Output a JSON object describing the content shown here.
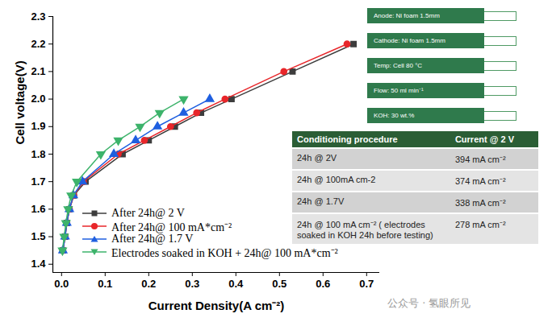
{
  "chart_data": {
    "type": "line",
    "x_label": "Current Density(A cm⁻²)",
    "y_label": "Cell voltage(V)",
    "xlim": [
      -0.02,
      0.73
    ],
    "ylim": [
      1.37,
      2.3
    ],
    "xticks": [
      {
        "value": 0,
        "label": "0.0"
      },
      0.1,
      0.2,
      0.3,
      0.4,
      0.5,
      0.6,
      0.7
    ],
    "yticks": [
      1.4,
      1.5,
      1.6,
      1.7,
      1.8,
      1.9,
      {
        "value": 2,
        "label": "2.0"
      },
      2.1,
      2.2,
      2.3
    ],
    "grid": false,
    "legend": "bottom left",
    "series": [
      {
        "name": "After 24h@ 2 V",
        "color": "#3d3d3d",
        "marker": "square",
        "x": [
          0.003,
          0.008,
          0.012,
          0.018,
          0.028,
          0.055,
          0.14,
          0.2,
          0.26,
          0.32,
          0.39,
          0.53,
          0.67
        ],
        "values": [
          1.45,
          1.5,
          1.55,
          1.6,
          1.65,
          1.7,
          1.8,
          1.85,
          1.9,
          1.95,
          2.0,
          2.1,
          2.2
        ]
      },
      {
        "name": "After 24h@ 100 mA*cm⁻²",
        "color": "#e8262a",
        "marker": "circle",
        "x": [
          0.003,
          0.008,
          0.012,
          0.018,
          0.028,
          0.05,
          0.13,
          0.19,
          0.25,
          0.31,
          0.375,
          0.51,
          0.655
        ],
        "values": [
          1.45,
          1.5,
          1.55,
          1.6,
          1.65,
          1.7,
          1.8,
          1.85,
          1.9,
          1.95,
          2.0,
          2.1,
          2.2
        ]
      },
      {
        "name": "After 24h@ 1.7 V",
        "color": "#1f5fe0",
        "marker": "triangle-up",
        "x": [
          0.003,
          0.008,
          0.012,
          0.018,
          0.027,
          0.048,
          0.12,
          0.17,
          0.22,
          0.28,
          0.34
        ],
        "values": [
          1.45,
          1.5,
          1.55,
          1.6,
          1.65,
          1.7,
          1.8,
          1.85,
          1.9,
          1.95,
          2.0
        ]
      },
      {
        "name": "Electrodes soaked in KOH + 24h@ 100 mA*cm⁻²",
        "color": "#3db36b",
        "marker": "triangle-down",
        "x": [
          0.002,
          0.006,
          0.01,
          0.015,
          0.022,
          0.035,
          0.09,
          0.13,
          0.18,
          0.225,
          0.28
        ],
        "values": [
          1.45,
          1.5,
          1.55,
          1.6,
          1.65,
          1.7,
          1.8,
          1.85,
          1.9,
          1.95,
          2.0
        ]
      }
    ],
    "annotations": [
      "Anode: Ni foam 1.5mm",
      "Cathode: Ni foam 1.5mm",
      "Temp: Cell 80 °C",
      "Flow: 50 ml min⁻¹",
      "KOH: 30 wt.%"
    ],
    "table": {
      "columns": [
        "Conditioning procedure",
        "Current @ 2 V"
      ],
      "rows": [
        [
          "24h @ 2V",
          "394 mA cm⁻²"
        ],
        [
          "24h @ 100mA cm-2",
          "374 mA cm⁻²"
        ],
        [
          "24h @ 1.7V",
          "338 mA cm⁻²"
        ],
        [
          "24h @ 100 mA cm⁻² ( electrodes soaked in KOH 24h before testing)",
          "278 mA cm⁻²"
        ]
      ]
    },
    "watermark": "公众号 · 氢眼所见"
  }
}
